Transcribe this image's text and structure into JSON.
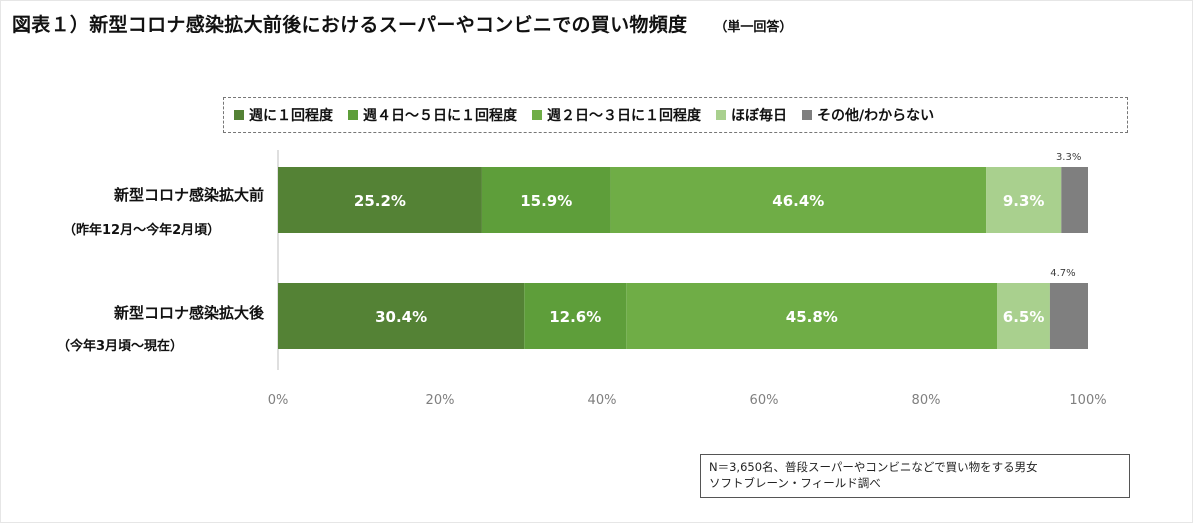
{
  "title": "図表１）新型コロナ感染拡大前後におけるスーパーやコンビニでの買い物頻度",
  "subtitle": "（単一回答）",
  "note": {
    "line1": "N＝3,650名、普段スーパーやコンビニなどで買い物をする男女",
    "line2": "ソフトブレーン・フィールド調べ"
  },
  "chart_data": {
    "type": "bar",
    "orientation": "horizontal",
    "stacked": true,
    "categories": [
      {
        "label": "新型コロナ感染拡大前",
        "sublabel": "（昨年12月～今年2月頃）"
      },
      {
        "label": "新型コロナ感染拡大後",
        "sublabel": "（今年3月頃～現在）"
      }
    ],
    "series": [
      {
        "name": "週に１回程度",
        "color": "#548235",
        "values": [
          25.2,
          30.4
        ]
      },
      {
        "name": "週４日～５日に１回程度",
        "color": "#5e9e3a",
        "values": [
          15.9,
          12.6
        ]
      },
      {
        "name": "週２日～３日に１回程度",
        "color": "#6fad46",
        "values": [
          46.4,
          45.8
        ]
      },
      {
        "name": "ほぼ毎日",
        "color": "#a9d08e",
        "values": [
          9.3,
          6.5
        ]
      },
      {
        "name": "その他/わからない",
        "color": "#7f7f7f",
        "values": [
          3.3,
          4.7
        ]
      }
    ],
    "xlim": [
      0,
      100
    ],
    "xticks": [
      "0%",
      "20%",
      "40%",
      "60%",
      "80%",
      "100%"
    ],
    "value_suffix": "%",
    "legend_position": "top",
    "grid": false
  }
}
